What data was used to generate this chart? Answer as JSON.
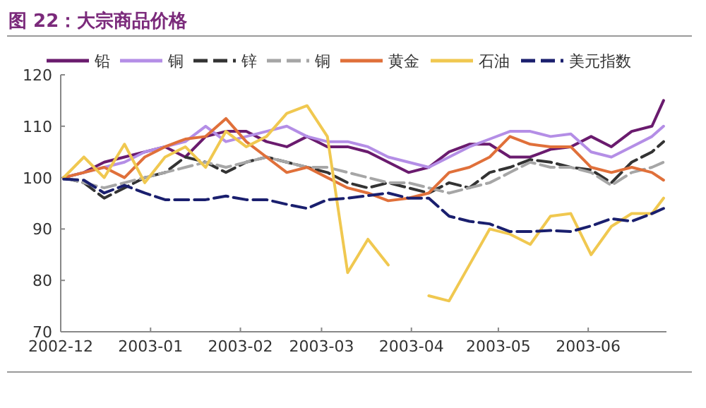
{
  "chart_data": {
    "type": "line",
    "title": "图 22：大宗商品价格",
    "x": [
      "2002-12-02",
      "2002-12-09",
      "2002-12-16",
      "2002-12-23",
      "2002-12-30",
      "2003-01-06",
      "2003-01-13",
      "2003-01-20",
      "2003-01-27",
      "2003-02-03",
      "2003-02-10",
      "2003-02-17",
      "2003-02-24",
      "2003-03-03",
      "2003-03-10",
      "2003-03-17",
      "2003-03-24",
      "2003-03-31",
      "2003-04-07",
      "2003-04-14",
      "2003-04-21",
      "2003-04-28",
      "2003-05-05",
      "2003-05-12",
      "2003-05-19",
      "2003-05-26",
      "2003-06-02",
      "2003-06-09",
      "2003-06-16",
      "2003-06-23",
      "2003-06-27"
    ],
    "series": [
      {
        "name": "铅",
        "color": "#6a1b6e",
        "values": [
          100,
          101,
          103,
          104,
          105,
          106,
          104,
          108,
          109,
          109,
          107,
          106,
          108,
          106,
          106,
          105,
          103,
          101,
          102,
          105,
          106.5,
          106.5,
          104,
          104,
          105.5,
          106,
          108,
          106,
          109,
          110,
          115
        ]
      },
      {
        "name": "铜",
        "color": "#b48ee6",
        "values": [
          100,
          101,
          102,
          103,
          105,
          106,
          107,
          110,
          107,
          108,
          109,
          110,
          108,
          107,
          107,
          106,
          104,
          103,
          102,
          104,
          106,
          107.5,
          109,
          109,
          108,
          108.5,
          105,
          104,
          106,
          108,
          110
        ]
      },
      {
        "name": "锌",
        "color": "#333333",
        "line_style": "dashed",
        "values": [
          100,
          99,
          96,
          98,
          100,
          101,
          104,
          103,
          101,
          103,
          104,
          103,
          102,
          101,
          99,
          98,
          99,
          98,
          97,
          99,
          98,
          101,
          102,
          103.5,
          103,
          102,
          101.5,
          99,
          103,
          105,
          107
        ]
      },
      {
        "name": "铜",
        "color": "#a6a6a6",
        "line_style": "dashed",
        "values": [
          100,
          99,
          98,
          99,
          100,
          101,
          102,
          103,
          102,
          103,
          104,
          103,
          102,
          102,
          101,
          100,
          99,
          99,
          98,
          97,
          98,
          99,
          101,
          103,
          102,
          102,
          101,
          98.5,
          101,
          102,
          103
        ]
      },
      {
        "name": "黄金",
        "color": "#e0703a",
        "values": [
          100,
          101,
          102,
          100,
          104,
          106,
          107.5,
          108,
          111.5,
          107,
          104,
          101,
          102,
          100,
          98,
          97,
          95.5,
          96,
          97,
          101,
          102,
          104,
          108,
          106.5,
          106,
          106,
          102,
          101,
          102,
          101,
          99.5
        ]
      },
      {
        "name": "石油",
        "color": "#f0c850",
        "values": [
          100,
          104,
          100,
          106.5,
          99,
          104,
          106,
          102,
          109,
          106,
          108,
          112.5,
          114,
          108,
          81.5,
          88,
          83,
          null,
          77,
          76,
          83,
          90,
          89,
          87,
          92.5,
          93,
          85,
          90.5,
          93,
          93,
          96
        ]
      },
      {
        "name": "美元指数",
        "color": "#1a1f6e",
        "line_style": "dashed",
        "values": [
          99.7,
          99.5,
          97,
          98.5,
          97,
          95.7,
          95.7,
          95.7,
          96.4,
          95.7,
          95.7,
          94.8,
          94,
          95.7,
          96,
          96.5,
          97,
          96,
          96,
          92.5,
          91.5,
          91,
          89.5,
          89.5,
          89.7,
          89.5,
          90.6,
          92,
          91.5,
          93,
          94
        ]
      }
    ],
    "xlim": [
      "2002-12-01",
      "2003-06-28"
    ],
    "xticks": [
      "2002-12",
      "2003-01",
      "2003-02",
      "2003-03",
      "2003-04",
      "2003-05",
      "2003-06"
    ],
    "ylim": [
      70,
      120
    ],
    "yticks": [
      70,
      80,
      90,
      100,
      110,
      120
    ],
    "grid": false,
    "legend": "top",
    "marker": "none"
  }
}
